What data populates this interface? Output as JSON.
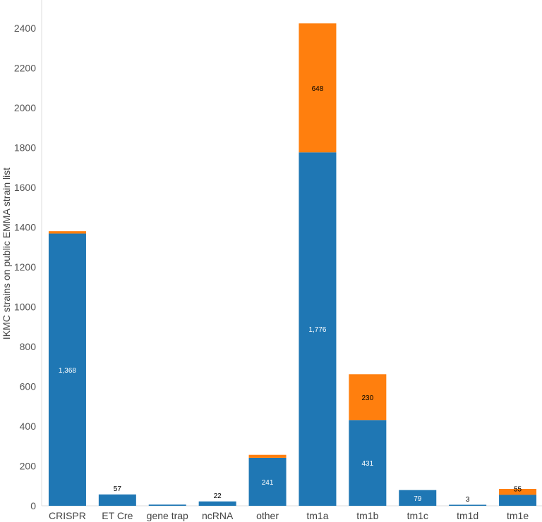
{
  "chart_data": {
    "type": "bar",
    "stacked": true,
    "title": "",
    "xlabel": "",
    "ylabel": "IKMC strains on public EMMA strain list",
    "ylim": [
      0,
      2500
    ],
    "yticks": [
      "0",
      "200",
      "400",
      "600",
      "800",
      "1000",
      "1200",
      "1400",
      "1600",
      "1800",
      "2000",
      "2200",
      "2400"
    ],
    "grid": false,
    "legend": "none",
    "colors": {
      "blue": "#1f77b4",
      "orange": "#ff7f0e"
    },
    "categories": [
      "CRISPR",
      "ET Cre",
      "gene trap",
      "ncRNA",
      "other",
      "tm1a",
      "tm1b",
      "tm1c",
      "tm1d",
      "tm1e"
    ],
    "series": [
      {
        "color": "#1f77b4",
        "values": [
          1368,
          57,
          6,
          22,
          241,
          1776,
          431,
          79,
          3,
          55
        ],
        "labels": [
          "1,368",
          "57",
          "",
          "22",
          "241",
          "1,776",
          "431",
          "79",
          "3",
          "55"
        ]
      },
      {
        "color": "#ff7f0e",
        "values": [
          12,
          0,
          0,
          0,
          15,
          648,
          230,
          0,
          0,
          30
        ],
        "labels": [
          "",
          "",
          "",
          "",
          "",
          "648",
          "230",
          "",
          "",
          ""
        ]
      }
    ]
  }
}
